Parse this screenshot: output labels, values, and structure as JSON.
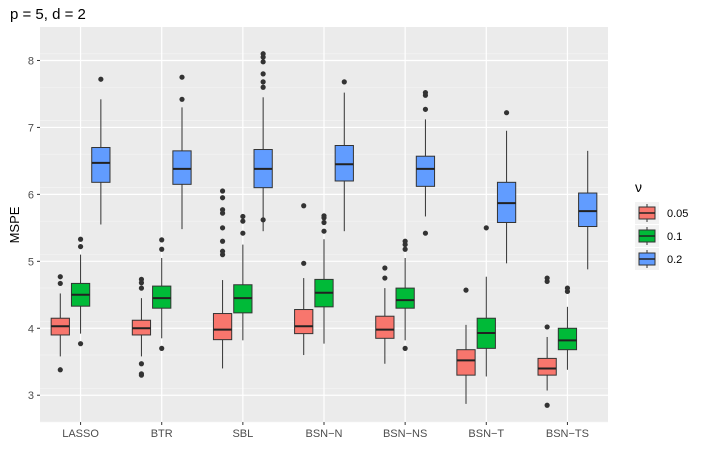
{
  "chart_data": {
    "type": "boxplot",
    "title": "p = 5, d = 2",
    "xlabel": "",
    "ylabel": "MSPE",
    "ylim": [
      2.6,
      8.5
    ],
    "yticks": [
      3,
      4,
      5,
      6,
      7,
      8
    ],
    "categories": [
      "LASSO",
      "BTR",
      "SBL",
      "BSN−N",
      "BSN−NS",
      "BSN−T",
      "BSN−TS"
    ],
    "legend": {
      "title": "ν",
      "placement": "right",
      "entries": [
        "0.05",
        "0.1",
        "0.2"
      ]
    },
    "series": [
      {
        "name": "0.05",
        "color": "#f8766d",
        "boxes": [
          {
            "whisker_low": 3.58,
            "q1": 3.9,
            "median": 4.03,
            "q3": 4.15,
            "whisker_high": 4.52,
            "outliers": [
              3.38,
              4.67,
              4.77
            ]
          },
          {
            "whisker_low": 3.58,
            "q1": 3.9,
            "median": 4.0,
            "q3": 4.12,
            "whisker_high": 4.45,
            "outliers": [
              3.3,
              3.32,
              3.47,
              4.6,
              4.68,
              4.73
            ]
          },
          {
            "whisker_low": 3.4,
            "q1": 3.83,
            "median": 3.98,
            "q3": 4.22,
            "whisker_high": 4.72,
            "outliers": [
              5.1,
              5.15,
              5.3,
              5.5,
              5.72,
              5.77,
              5.95,
              6.05
            ]
          },
          {
            "whisker_low": 3.6,
            "q1": 3.92,
            "median": 4.03,
            "q3": 4.28,
            "whisker_high": 4.75,
            "outliers": [
              4.97,
              5.83
            ]
          },
          {
            "whisker_low": 3.47,
            "q1": 3.85,
            "median": 3.98,
            "q3": 4.18,
            "whisker_high": 4.6,
            "outliers": [
              4.75,
              4.9
            ]
          },
          {
            "whisker_low": 2.87,
            "q1": 3.3,
            "median": 3.52,
            "q3": 3.68,
            "whisker_high": 4.05,
            "outliers": [
              4.57
            ]
          },
          {
            "whisker_low": 3.07,
            "q1": 3.3,
            "median": 3.4,
            "q3": 3.55,
            "whisker_high": 3.87,
            "outliers": [
              2.85,
              4.02,
              4.7,
              4.75
            ]
          }
        ]
      },
      {
        "name": "0.1",
        "color": "#00ba38",
        "boxes": [
          {
            "whisker_low": 3.92,
            "q1": 4.33,
            "median": 4.5,
            "q3": 4.67,
            "whisker_high": 5.1,
            "outliers": [
              3.77,
              5.22,
              5.33
            ]
          },
          {
            "whisker_low": 3.85,
            "q1": 4.3,
            "median": 4.45,
            "q3": 4.63,
            "whisker_high": 5.05,
            "outliers": [
              3.7,
              5.18,
              5.32
            ]
          },
          {
            "whisker_low": 3.82,
            "q1": 4.23,
            "median": 4.45,
            "q3": 4.65,
            "whisker_high": 5.25,
            "outliers": [
              5.42,
              5.6,
              5.67
            ]
          },
          {
            "whisker_low": 3.77,
            "q1": 4.32,
            "median": 4.53,
            "q3": 4.73,
            "whisker_high": 5.33,
            "outliers": [
              5.45,
              5.58,
              5.65,
              5.68
            ]
          },
          {
            "whisker_low": 3.82,
            "q1": 4.3,
            "median": 4.42,
            "q3": 4.6,
            "whisker_high": 5.05,
            "outliers": [
              3.7,
              5.18,
              5.25,
              5.3
            ]
          },
          {
            "whisker_low": 3.28,
            "q1": 3.7,
            "median": 3.93,
            "q3": 4.15,
            "whisker_high": 4.77,
            "outliers": [
              5.5
            ]
          },
          {
            "whisker_low": 3.38,
            "q1": 3.68,
            "median": 3.82,
            "q3": 4.0,
            "whisker_high": 4.32,
            "outliers": [
              4.55,
              4.6
            ]
          }
        ]
      },
      {
        "name": "0.2",
        "color": "#619cff",
        "boxes": [
          {
            "whisker_low": 5.55,
            "q1": 6.18,
            "median": 6.47,
            "q3": 6.7,
            "whisker_high": 7.42,
            "outliers": [
              7.72
            ]
          },
          {
            "whisker_low": 5.48,
            "q1": 6.15,
            "median": 6.38,
            "q3": 6.65,
            "whisker_high": 7.3,
            "outliers": [
              7.42,
              7.75
            ]
          },
          {
            "whisker_low": 5.45,
            "q1": 6.1,
            "median": 6.38,
            "q3": 6.67,
            "whisker_high": 7.45,
            "outliers": [
              5.62,
              7.6,
              7.68,
              7.8,
              7.98,
              8.05,
              8.1
            ]
          },
          {
            "whisker_low": 5.45,
            "q1": 6.2,
            "median": 6.45,
            "q3": 6.73,
            "whisker_high": 7.52,
            "outliers": [
              7.68
            ]
          },
          {
            "whisker_low": 5.67,
            "q1": 6.12,
            "median": 6.38,
            "q3": 6.57,
            "whisker_high": 7.12,
            "outliers": [
              5.42,
              7.27,
              7.48,
              7.52
            ]
          },
          {
            "whisker_low": 4.97,
            "q1": 5.58,
            "median": 5.87,
            "q3": 6.18,
            "whisker_high": 6.95,
            "outliers": [
              7.22
            ]
          },
          {
            "whisker_low": 4.88,
            "q1": 5.52,
            "median": 5.75,
            "q3": 6.02,
            "whisker_high": 6.65,
            "outliers": []
          }
        ]
      }
    ]
  }
}
